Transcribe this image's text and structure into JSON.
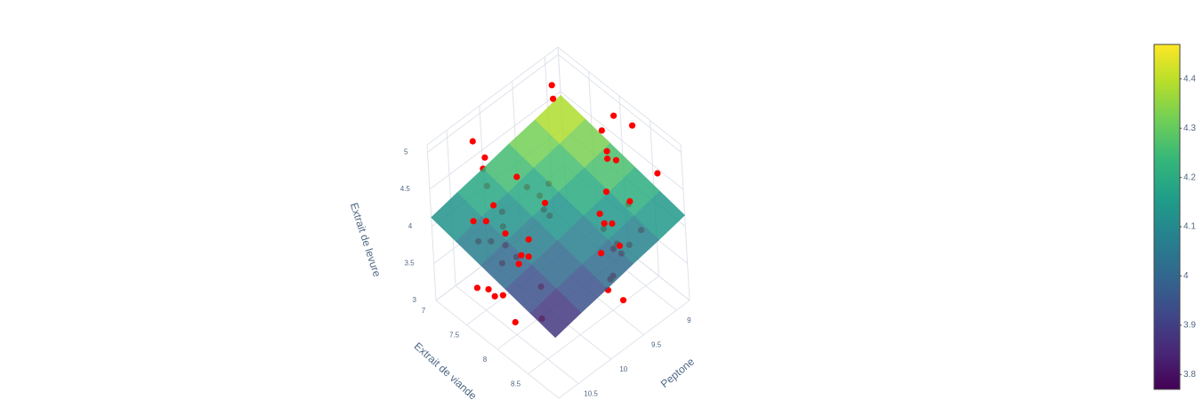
{
  "chart_data": {
    "type": "surface3d",
    "x_title": "Extrait de viande",
    "y_title": "Peptone",
    "z_title": "Extrait de levure",
    "xlim": [
      7,
      9
    ],
    "ylim": [
      8.8,
      10.8
    ],
    "zlim": [
      3,
      5.1
    ],
    "xticks": [
      7,
      7.5,
      8,
      8.5
    ],
    "yticks": [
      9,
      9.5,
      10,
      10.5
    ],
    "zticks": [
      3,
      3.5,
      4,
      4.5,
      5
    ],
    "grid": true,
    "colorscale": "Viridis",
    "clim": [
      3.77,
      4.47
    ],
    "cticks": [
      3.8,
      3.9,
      4,
      4.1,
      4.2,
      4.3,
      4.4
    ],
    "surface": {
      "x": [
        7,
        7.4,
        7.8,
        8.2,
        8.6,
        9
      ],
      "y": [
        8.8,
        9.2,
        9.6,
        10,
        10.4,
        10.8
      ],
      "z": [
        [
          4.45,
          4.38,
          4.32,
          4.25,
          4.19,
          4.12
        ],
        [
          4.39,
          4.32,
          4.26,
          4.19,
          4.13,
          4.06
        ],
        [
          4.33,
          4.26,
          4.2,
          4.13,
          4.07,
          4.0
        ],
        [
          4.27,
          4.2,
          4.14,
          4.07,
          4.01,
          3.94
        ],
        [
          4.21,
          4.14,
          4.08,
          4.01,
          3.95,
          3.88
        ],
        [
          4.15,
          4.08,
          4.02,
          3.95,
          3.89,
          3.82
        ]
      ]
    },
    "scatter": {
      "color": "#ff0000",
      "x": [
        7.1,
        7.3,
        7.5,
        7.8,
        8.1,
        8.4,
        8.7,
        8.9,
        7.2,
        7.6,
        8.0,
        8.3,
        8.6,
        7.4,
        7.9,
        8.2,
        8.8,
        7.05,
        7.7,
        8.5,
        7.15,
        7.45,
        7.85,
        8.15,
        8.45,
        8.75,
        7.35,
        7.65,
        8.05,
        8.35,
        8.65,
        8.95,
        7.25,
        7.55,
        7.95,
        8.25,
        8.55,
        8.85,
        7.1,
        7.5,
        7.9,
        8.3,
        8.7,
        7.3,
        7.7,
        8.1,
        8.5,
        8.9,
        7.2,
        7.6,
        8.0,
        8.4,
        8.8,
        7.4,
        7.8,
        8.2,
        8.6,
        7.0,
        7.95,
        8.45
      ],
      "y": [
        9.0,
        9.4,
        9.8,
        10.2,
        10.6,
        9.1,
        9.5,
        9.9,
        10.3,
        10.7,
        8.9,
        9.3,
        9.7,
        10.1,
        10.5,
        9.2,
        9.6,
        10.0,
        10.4,
        10.8,
        9.05,
        9.45,
        9.85,
        10.25,
        10.65,
        8.95,
        9.35,
        9.75,
        10.15,
        10.55,
        9.15,
        9.55,
        9.95,
        10.35,
        10.75,
        8.85,
        9.25,
        9.65,
        10.05,
        10.45,
        9.0,
        9.4,
        9.8,
        10.2,
        10.6,
        9.1,
        9.5,
        9.9,
        10.3,
        10.7,
        8.9,
        9.3,
        9.7,
        10.1,
        10.5,
        9.2,
        9.6,
        10.0,
        10.4,
        10.8
      ],
      "z": [
        4.6,
        3.5,
        4.2,
        4.8,
        3.3,
        4.1,
        3.9,
        4.7,
        3.6,
        4.4,
        4.9,
        3.2,
        4.5,
        3.8,
        4.3,
        4.75,
        3.4,
        4.05,
        3.7,
        4.6,
        4.85,
        3.55,
        4.25,
        3.15,
        4.45,
        4.65,
        3.85,
        4.15,
        3.45,
        4.55,
        3.95,
        4.8,
        3.35,
        4.35,
        3.65,
        4.9,
        3.75,
        4.2,
        4.5,
        3.25,
        4.7,
        3.9,
        4.1,
        3.6,
        4.4,
        3.3,
        4.6,
        3.8,
        4.95,
        3.5,
        4.3,
        3.7,
        4.5,
        4.0,
        3.4,
        4.65,
        3.55,
        4.25,
        3.95,
        4.45
      ]
    }
  }
}
